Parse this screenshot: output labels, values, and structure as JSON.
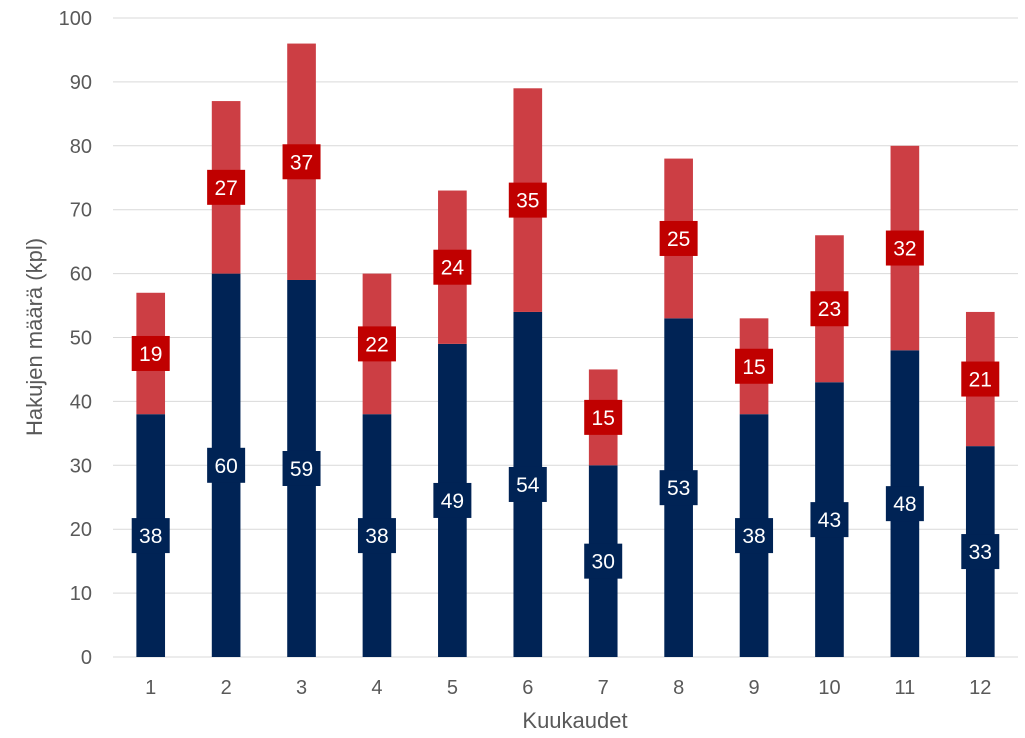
{
  "chart_data": {
    "type": "bar",
    "stacked": true,
    "xlabel": "Kuukaudet",
    "ylabel": "Hakujen määrä (kpl)",
    "ylim": [
      0,
      100
    ],
    "ytick_step": 10,
    "grid": true,
    "categories": [
      "1",
      "2",
      "3",
      "4",
      "5",
      "6",
      "7",
      "8",
      "9",
      "10",
      "11",
      "12"
    ],
    "series": [
      {
        "color": "#002355",
        "values": [
          38,
          60,
          59,
          38,
          49,
          54,
          30,
          53,
          38,
          43,
          48,
          33
        ]
      },
      {
        "color": "#CC3E44",
        "label_color": "#C00000",
        "values": [
          19,
          27,
          37,
          22,
          24,
          35,
          15,
          25,
          15,
          23,
          32,
          21
        ]
      }
    ]
  }
}
